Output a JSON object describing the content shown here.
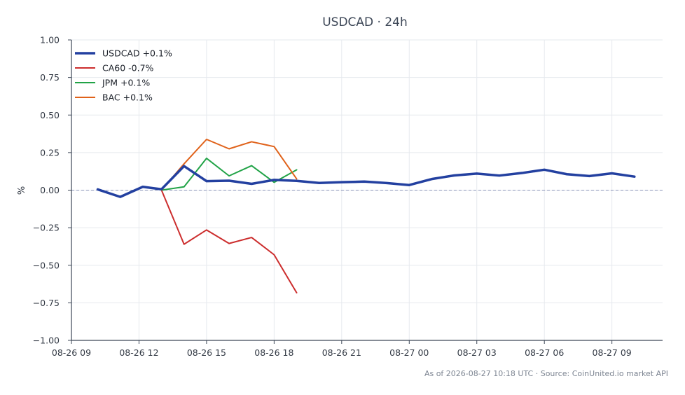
{
  "chart_data": {
    "type": "line",
    "title": "USDCAD · 24h",
    "ylabel": "%",
    "xlabel": "",
    "ylim": [
      -1.0,
      1.0
    ],
    "yticks": [
      1.0,
      0.75,
      0.5,
      0.25,
      0.0,
      -0.25,
      -0.5,
      -0.75,
      -1.0
    ],
    "ytick_labels": [
      "1.00",
      "0.75",
      "0.50",
      "0.25",
      "0.00",
      "−0.25",
      "−0.50",
      "−0.75",
      "−1.00"
    ],
    "xlim": [
      "2026-08-26 09:00",
      "2026-08-27 11:15"
    ],
    "xticks": [
      "2026-08-26 09:00",
      "2026-08-26 12:00",
      "2026-08-26 15:00",
      "2026-08-26 18:00",
      "2026-08-26 21:00",
      "2026-08-27 00:00",
      "2026-08-27 03:00",
      "2026-08-27 06:00",
      "2026-08-27 09:00"
    ],
    "xtick_labels": [
      "08-26 09",
      "08-26 12",
      "08-26 15",
      "08-26 18",
      "08-26 21",
      "08-27 00",
      "08-27 03",
      "08-27 06",
      "08-27 09"
    ],
    "grid": true,
    "legend_position": "top-left",
    "zero_line": true,
    "series": [
      {
        "name": "USDCAD +0.1%",
        "color": "#2340a0",
        "width": 3.5,
        "x": [
          "2026-08-26 10:10",
          "2026-08-26 11:10",
          "2026-08-26 12:10",
          "2026-08-26 13:00",
          "2026-08-26 14:00",
          "2026-08-26 15:00",
          "2026-08-26 16:00",
          "2026-08-26 17:00",
          "2026-08-26 18:00",
          "2026-08-26 19:00",
          "2026-08-26 20:00",
          "2026-08-26 21:00",
          "2026-08-26 22:00",
          "2026-08-26 23:00",
          "2026-08-27 00:00",
          "2026-08-27 01:00",
          "2026-08-27 02:00",
          "2026-08-27 03:00",
          "2026-08-27 04:00",
          "2026-08-27 05:00",
          "2026-08-27 06:00",
          "2026-08-27 07:00",
          "2026-08-27 08:00",
          "2026-08-27 09:00",
          "2026-08-27 10:00"
        ],
        "y": [
          0.005,
          -0.045,
          0.022,
          0.006,
          0.16,
          0.06,
          0.063,
          0.042,
          0.068,
          0.062,
          0.048,
          0.053,
          0.057,
          0.047,
          0.034,
          0.074,
          0.098,
          0.11,
          0.097,
          0.114,
          0.136,
          0.106,
          0.094,
          0.112,
          0.09
        ]
      },
      {
        "name": "CA60 -0.7%",
        "color": "#cc2d2d",
        "width": 2,
        "x": [
          "2026-08-26 13:00",
          "2026-08-26 14:00",
          "2026-08-26 15:00",
          "2026-08-26 16:00",
          "2026-08-26 17:00",
          "2026-08-26 18:00",
          "2026-08-26 19:00"
        ],
        "y": [
          0.0,
          -0.36,
          -0.265,
          -0.355,
          -0.315,
          -0.43,
          -0.683
        ]
      },
      {
        "name": "JPM +0.1%",
        "color": "#21a347",
        "width": 2,
        "x": [
          "2026-08-26 13:00",
          "2026-08-26 14:00",
          "2026-08-26 15:00",
          "2026-08-26 16:00",
          "2026-08-26 17:00",
          "2026-08-26 18:00",
          "2026-08-26 19:00"
        ],
        "y": [
          0.0,
          0.022,
          0.212,
          0.095,
          0.163,
          0.052,
          0.135
        ]
      },
      {
        "name": "BAC +0.1%",
        "color": "#e0621a",
        "width": 2,
        "x": [
          "2026-08-26 13:00",
          "2026-08-26 14:00",
          "2026-08-26 15:00",
          "2026-08-26 16:00",
          "2026-08-26 17:00",
          "2026-08-26 18:00",
          "2026-08-26 19:00"
        ],
        "y": [
          0.0,
          0.175,
          0.338,
          0.275,
          0.322,
          0.29,
          0.075
        ]
      }
    ]
  },
  "footer": "As of 2026-08-27 10:18 UTC · Source: CoinUnited.io market API",
  "colors": {
    "axis": "#3d4757",
    "grid": "#e6e9ee",
    "zero_line": "#8a93b8",
    "text": "#333a45"
  }
}
